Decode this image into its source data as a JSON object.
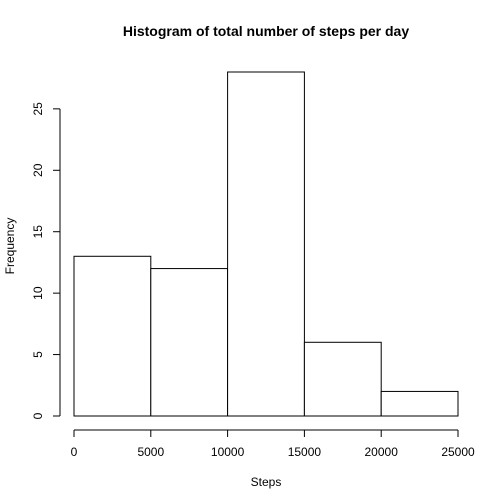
{
  "chart_data": {
    "type": "bar",
    "title": "Histogram of total number of steps per day",
    "xlabel": "Steps",
    "ylabel": "Frequency",
    "bins": [
      [
        0,
        5000
      ],
      [
        5000,
        10000
      ],
      [
        10000,
        15000
      ],
      [
        15000,
        20000
      ],
      [
        20000,
        25000
      ]
    ],
    "values": [
      13,
      12,
      28,
      6,
      2
    ],
    "xlim": [
      0,
      25000
    ],
    "ylim": [
      0,
      28
    ],
    "x_ticks": [
      0,
      5000,
      10000,
      15000,
      20000,
      25000
    ],
    "x_tick_labels": [
      "0",
      "5000",
      "10000",
      "15000",
      "20000",
      "25000"
    ],
    "y_ticks": [
      0,
      5,
      10,
      15,
      20,
      25
    ],
    "y_tick_labels": [
      "0",
      "5",
      "10",
      "15",
      "20",
      "25"
    ],
    "grid": false,
    "bar_fill": "#ffffff",
    "bar_stroke": "#000000"
  }
}
